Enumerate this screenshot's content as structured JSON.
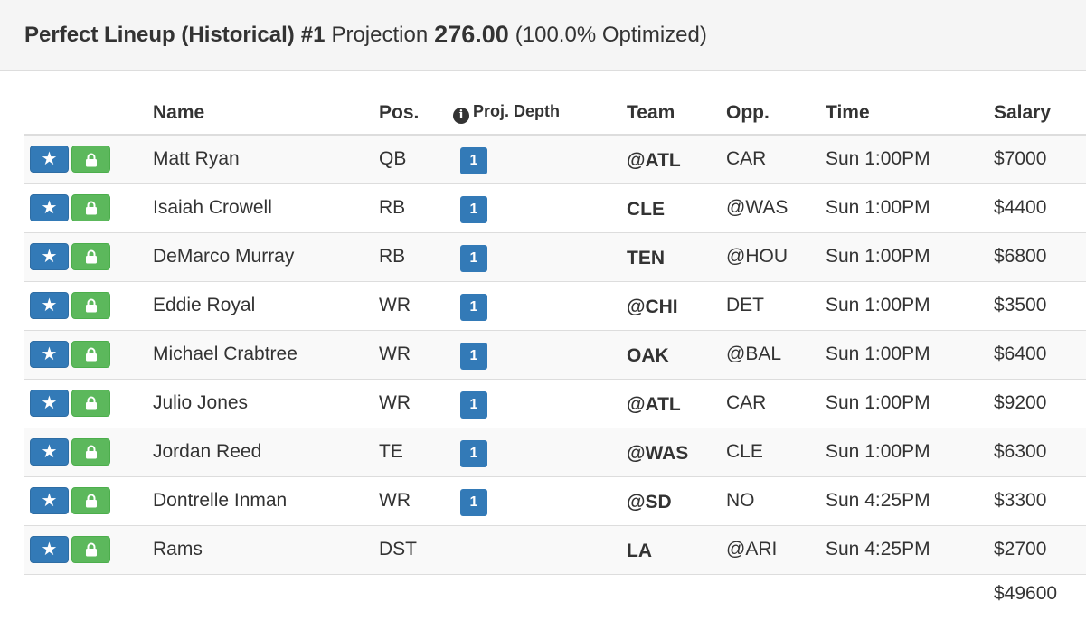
{
  "header": {
    "title": "Perfect Lineup (Historical)",
    "number": "#1",
    "projection_label": "Projection",
    "projection_value": "276.00",
    "optimized": "(100.0% Optimized)"
  },
  "columns": {
    "name": "Name",
    "pos": "Pos.",
    "depth": "Proj. Depth",
    "team": "Team",
    "opp": "Opp.",
    "time": "Time",
    "salary": "Salary"
  },
  "colors": {
    "star_button": "#337ab7",
    "lock_button": "#5cb85c",
    "depth_badge": "#337ab7"
  },
  "icons": {
    "favorite": "star-icon",
    "lock": "lock-icon",
    "info": "info-icon"
  },
  "players": [
    {
      "name": "Matt Ryan",
      "pos": "QB",
      "depth": "1",
      "team": "@ATL",
      "opp": "CAR",
      "time": "Sun 1:00PM",
      "salary": "$7000"
    },
    {
      "name": "Isaiah Crowell",
      "pos": "RB",
      "depth": "1",
      "team": "CLE",
      "opp": "@WAS",
      "time": "Sun 1:00PM",
      "salary": "$4400"
    },
    {
      "name": "DeMarco Murray",
      "pos": "RB",
      "depth": "1",
      "team": "TEN",
      "opp": "@HOU",
      "time": "Sun 1:00PM",
      "salary": "$6800"
    },
    {
      "name": "Eddie Royal",
      "pos": "WR",
      "depth": "1",
      "team": "@CHI",
      "opp": "DET",
      "time": "Sun 1:00PM",
      "salary": "$3500"
    },
    {
      "name": "Michael Crabtree",
      "pos": "WR",
      "depth": "1",
      "team": "OAK",
      "opp": "@BAL",
      "time": "Sun 1:00PM",
      "salary": "$6400"
    },
    {
      "name": "Julio Jones",
      "pos": "WR",
      "depth": "1",
      "team": "@ATL",
      "opp": "CAR",
      "time": "Sun 1:00PM",
      "salary": "$9200"
    },
    {
      "name": "Jordan Reed",
      "pos": "TE",
      "depth": "1",
      "team": "@WAS",
      "opp": "CLE",
      "time": "Sun 1:00PM",
      "salary": "$6300"
    },
    {
      "name": "Dontrelle Inman",
      "pos": "WR",
      "depth": "1",
      "team": "@SD",
      "opp": "NO",
      "time": "Sun 4:25PM",
      "salary": "$3300"
    },
    {
      "name": "Rams",
      "pos": "DST",
      "depth": "",
      "team": "LA",
      "opp": "@ARI",
      "time": "Sun 4:25PM",
      "salary": "$2700"
    }
  ],
  "total_salary": "$49600"
}
